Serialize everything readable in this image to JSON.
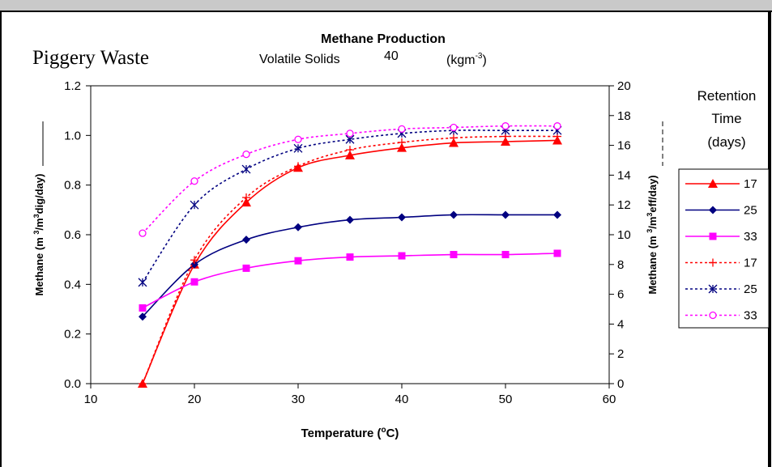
{
  "header": {
    "left_label": "Piggery Waste",
    "title": "Methane Production",
    "vs_label": "Volatile Solids",
    "vs_value": "40",
    "vs_unit": "(kgm",
    "vs_unit_exp": "-3",
    "vs_unit_close": ")"
  },
  "legend": {
    "title_lines": [
      "Retention",
      "Time",
      "(days)"
    ],
    "entries": [
      "17",
      "25",
      "33",
      "17",
      "25",
      "33"
    ]
  },
  "axes": {
    "xlabel_prefix": "Temperature (",
    "xlabel_sup": "o",
    "xlabel_suffix": "C)",
    "ylabel_left_a": "Methane (m ",
    "ylabel_left_sup1": "3",
    "ylabel_left_b": "/m",
    "ylabel_left_sup2": "3",
    "ylabel_left_c": "dig/day)",
    "ylabel_right_a": "Methane (m ",
    "ylabel_right_sup1": "3",
    "ylabel_right_b": "/m",
    "ylabel_right_sup2": "3",
    "ylabel_right_c": "eff/day)"
  },
  "colors": {
    "red": "#ff0000",
    "navy": "#000080",
    "magenta": "#ff00ff"
  },
  "chart_data": {
    "type": "line",
    "title": "Methane Production",
    "xlabel": "Temperature (oC)",
    "ylabel_left": "Methane (m3/m3dig/day)",
    "ylabel_right": "Methane (m3/m3eff/day)",
    "xlim": [
      10,
      60
    ],
    "ylim_left": [
      0,
      1.2
    ],
    "ylim_right": [
      0,
      20
    ],
    "x_ticks": [
      "10",
      "20",
      "30",
      "40",
      "50",
      "60"
    ],
    "y_left_ticks": [
      "0.0",
      "0.2",
      "0.4",
      "0.6",
      "0.8",
      "1.0",
      "1.2"
    ],
    "y_right_ticks": [
      "0",
      "2",
      "4",
      "6",
      "8",
      "10",
      "12",
      "14",
      "16",
      "18",
      "20"
    ],
    "x": [
      15,
      20,
      25,
      30,
      35,
      40,
      45,
      50,
      55
    ],
    "legend_position": "right",
    "series": [
      {
        "name": "17",
        "axis": "left",
        "style": "solid",
        "marker": "triangle",
        "color": "#ff0000",
        "values": [
          0.0,
          0.48,
          0.73,
          0.87,
          0.92,
          0.95,
          0.97,
          0.975,
          0.98
        ]
      },
      {
        "name": "25",
        "axis": "left",
        "style": "solid",
        "marker": "diamond",
        "color": "#000080",
        "values": [
          0.27,
          0.48,
          0.58,
          0.63,
          0.66,
          0.67,
          0.68,
          0.68,
          0.68
        ]
      },
      {
        "name": "33",
        "axis": "left",
        "style": "solid",
        "marker": "square",
        "color": "#ff00ff",
        "values": [
          0.305,
          0.41,
          0.465,
          0.495,
          0.51,
          0.515,
          0.52,
          0.52,
          0.525
        ]
      },
      {
        "name": "17",
        "axis": "right",
        "style": "dotted",
        "marker": "plus",
        "color": "#ff0000",
        "values": [
          0.0,
          8.3,
          12.5,
          14.6,
          15.7,
          16.2,
          16.5,
          16.6,
          16.6
        ]
      },
      {
        "name": "25",
        "axis": "right",
        "style": "dotted",
        "marker": "asterisk",
        "color": "#000080",
        "values": [
          6.8,
          12.0,
          14.4,
          15.8,
          16.4,
          16.8,
          17.0,
          17.0,
          17.0
        ]
      },
      {
        "name": "33",
        "axis": "right",
        "style": "dotted",
        "marker": "circle",
        "color": "#ff00ff",
        "values": [
          10.1,
          13.6,
          15.4,
          16.4,
          16.8,
          17.1,
          17.2,
          17.3,
          17.3
        ]
      }
    ]
  }
}
